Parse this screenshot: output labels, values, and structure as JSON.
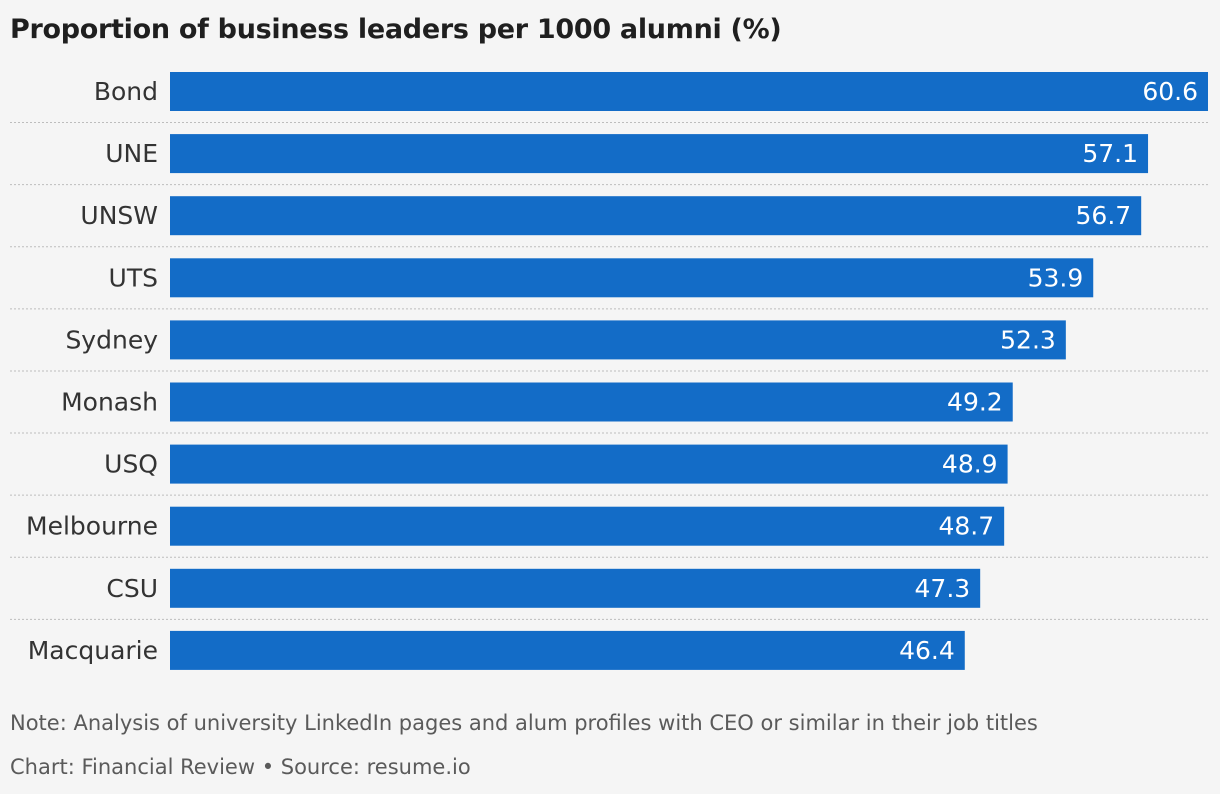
{
  "title": "Proportion of business leaders per 1000 alumni (%)",
  "colors": {
    "bar": "#136cc7",
    "bar_label": "#ffffff",
    "category_label": "#333333",
    "separator": "#bdbdbd",
    "background": "#f5f5f5"
  },
  "chart_data": {
    "type": "bar",
    "orientation": "horizontal",
    "title": "Proportion of business leaders per 1000 alumni (%)",
    "categories": [
      "Bond",
      "UNE",
      "UNSW",
      "UTS",
      "Sydney",
      "Monash",
      "USQ",
      "Melbourne",
      "CSU",
      "Macquarie"
    ],
    "values": [
      60.6,
      57.1,
      56.7,
      53.9,
      52.3,
      49.2,
      48.9,
      48.7,
      47.3,
      46.4
    ],
    "value_labels": [
      "60.6",
      "57.1",
      "56.7",
      "53.9",
      "52.3",
      "49.2",
      "48.9",
      "48.7",
      "47.3",
      "46.4"
    ],
    "xlabel": "",
    "ylabel": "",
    "xlim": [
      0,
      60.6
    ],
    "grid": false,
    "legend": "none"
  },
  "footer": {
    "note": "Note: Analysis of university LinkedIn pages and alum profiles with CEO or similar in their job titles",
    "credit": "Chart: Financial Review • Source: resume.io"
  }
}
